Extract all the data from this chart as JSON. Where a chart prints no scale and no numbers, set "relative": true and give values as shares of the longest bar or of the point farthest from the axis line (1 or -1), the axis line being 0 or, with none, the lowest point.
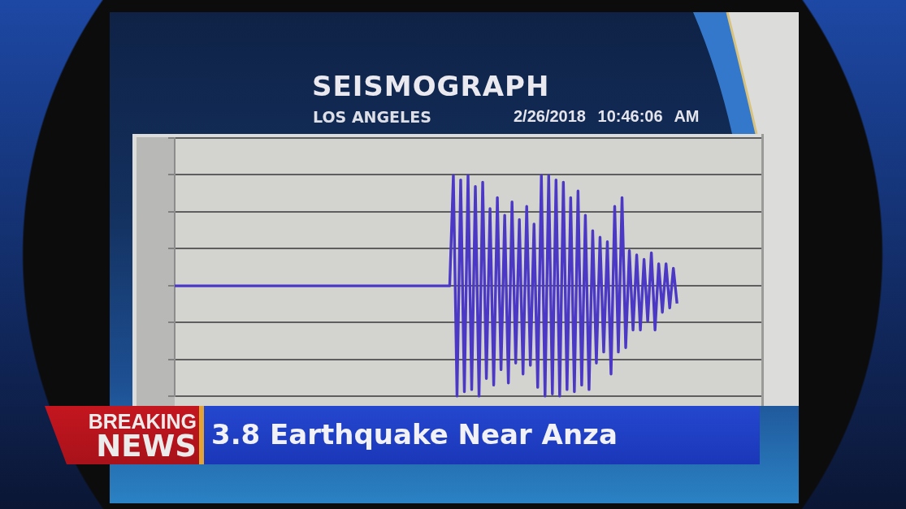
{
  "chart_data": {
    "type": "line",
    "title": "SEISMOGRAPH",
    "subtitle": "LOS ANGELES",
    "annotations": [
      "2/26/2018 10:46:06 AM",
      "BREAKING NEWS",
      "3.8 Earthquake Near Anza"
    ],
    "relative": true,
    "grid": "y",
    "tick_labels": false,
    "color": "#4b38c4",
    "categories": [
      null,
      null,
      null,
      null,
      null,
      null,
      null,
      null,
      null,
      null,
      null,
      null,
      null,
      null,
      null,
      null,
      null,
      null,
      null,
      null,
      null,
      null,
      null,
      null,
      null,
      null,
      null,
      null,
      null,
      null,
      null,
      null,
      null,
      null,
      null,
      null,
      null,
      null,
      null,
      null,
      null,
      null,
      null,
      null,
      null,
      null,
      null,
      null,
      null,
      null,
      null,
      null,
      null,
      null,
      null,
      null,
      null,
      null,
      null,
      null,
      null,
      null,
      null,
      null,
      null,
      null,
      null,
      null,
      null,
      null,
      null,
      null,
      null,
      null,
      null,
      null,
      null,
      null,
      null,
      null,
      null,
      null,
      null,
      null,
      null,
      null,
      null,
      null,
      null,
      null,
      null,
      null,
      null,
      null,
      null,
      null,
      null,
      null,
      null,
      null,
      null,
      null,
      null,
      null,
      null,
      null,
      null,
      null,
      null,
      null,
      null,
      null,
      null,
      null,
      null,
      null,
      null,
      null,
      null,
      null,
      null,
      null,
      null,
      null,
      null,
      null,
      null,
      null,
      null,
      null,
      null,
      null,
      null,
      null,
      null,
      null,
      null,
      null,
      null,
      null,
      null,
      null,
      null,
      null,
      null,
      null,
      null,
      null,
      null,
      null,
      null,
      null,
      null,
      null,
      null,
      null,
      null,
      null,
      null,
      null,
      null
    ],
    "values": [
      0.5,
      0.5,
      0.5,
      0.5,
      0.5,
      0.5,
      0.5,
      0.5,
      0.5,
      0.5,
      0.5,
      0.5,
      0.5,
      0.5,
      0.5,
      0.5,
      0.5,
      0.5,
      0.5,
      0.5,
      0.5,
      0.5,
      0.5,
      0.5,
      0.5,
      0.5,
      0.5,
      0.5,
      0.5,
      0.5,
      0.5,
      0.5,
      0.5,
      0.5,
      0.5,
      0.5,
      0.5,
      0.5,
      0.5,
      0.5,
      0.5,
      0.5,
      0.5,
      0.5,
      0.5,
      0.5,
      0.5,
      0.5,
      0.5,
      0.5,
      0.5,
      0.5,
      0.5,
      0.5,
      0.5,
      0.5,
      0.5,
      0.5,
      0.5,
      0.5,
      0.5,
      0.5,
      0.5,
      0.5,
      0.5,
      0.5,
      0.5,
      0.5,
      0.5,
      0.5,
      0.5,
      0.5,
      0.5,
      0.5,
      0.5,
      0.5,
      1,
      0,
      0.98,
      0.02,
      1,
      0.03,
      0.95,
      0,
      0.97,
      0.08,
      0.85,
      0.05,
      0.9,
      0.12,
      0.82,
      0.06,
      0.88,
      0.15,
      0.8,
      0.1,
      0.86,
      0.14,
      0.78,
      0.04,
      1,
      0,
      1,
      0.01,
      0.98,
      0,
      0.97,
      0.03,
      0.9,
      0.02,
      0.93,
      0.05,
      0.82,
      0.03,
      0.75,
      0.15,
      0.72,
      0.2,
      0.7,
      0.1,
      0.86,
      0.2,
      0.9,
      0.22,
      0.66,
      0.3,
      0.64,
      0.3,
      0.62,
      0.34,
      0.65,
      0.3,
      0.6,
      0.38,
      0.6,
      0.4,
      0.58,
      0.42,
      null,
      null,
      null,
      null,
      null,
      null,
      null,
      null,
      null,
      null,
      null,
      null,
      null,
      null,
      null,
      null,
      null,
      null,
      null,
      null,
      null,
      null,
      null
    ]
  }
}
